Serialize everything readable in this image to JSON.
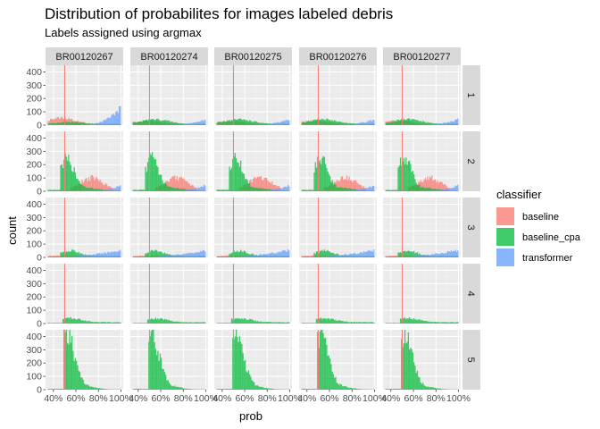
{
  "chart_data": {
    "type": "histogram",
    "title": "Distribution of probabilites for images labeled debris",
    "subtitle": "Labels assigned using argmax",
    "xlabel": "prob",
    "ylabel": "count",
    "x_ticks": [
      "40%",
      "60%",
      "80%",
      "100%"
    ],
    "x_tick_values": [
      0.4,
      0.6,
      0.8,
      1.0
    ],
    "xlim": [
      0.33,
      1.02
    ],
    "y_ticks": [
      "0",
      "100",
      "200",
      "300",
      "400"
    ],
    "y_tick_values": [
      0,
      100,
      200,
      300,
      400
    ],
    "ylim": [
      0,
      450
    ],
    "reference_line_x": 0.5,
    "reference_line_color": "#F8766D",
    "columns": [
      "BR00120267",
      "BR00120274",
      "BR00120275",
      "BR00120276",
      "BR00120277"
    ],
    "rows": [
      "1",
      "2",
      "3",
      "4",
      "5"
    ],
    "legend": {
      "title": "classifier",
      "position": "right",
      "entries": [
        {
          "name": "baseline",
          "color": "#F8766D"
        },
        {
          "name": "baseline_cpa",
          "color": "#00BA38"
        },
        {
          "name": "transformer",
          "color": "#619CFF"
        }
      ]
    },
    "grid": true,
    "bin_edges_start": 0.35,
    "bin_width": 0.01,
    "bins": 65,
    "series": [
      {
        "row": "1",
        "classifier": "baseline",
        "approx_shape": "flat low, peak ~50 near 0.40-0.50, falling to ~10 by 0.80"
      },
      {
        "row": "1",
        "classifier": "baseline_cpa",
        "approx_shape": "~30-45 near 0.50-0.65, ~15 afterwards"
      },
      {
        "row": "1",
        "classifier": "transformer",
        "approx_shape": "low ~5, rising to ~130 at 1.00 (col 1), ~40 elsewhere"
      },
      {
        "row": "2",
        "classifier": "baseline",
        "approx_shape": "broad hump ~100 over 0.60-0.90"
      },
      {
        "row": "2",
        "classifier": "baseline_cpa",
        "approx_shape": "peak ~230-250 near 0.52, decaying to ~20 by 0.80"
      },
      {
        "row": "2",
        "classifier": "transformer",
        "approx_shape": "low ~10, rising to ~40 at 1.00"
      },
      {
        "row": "3",
        "classifier": "baseline",
        "approx_shape": "low ~10-15"
      },
      {
        "row": "3",
        "classifier": "baseline_cpa",
        "approx_shape": "peak ~30-45 near 0.50-0.60"
      },
      {
        "row": "3",
        "classifier": "transformer",
        "approx_shape": "rising from ~5 to ~50 at 1.00"
      },
      {
        "row": "4",
        "classifier": "baseline",
        "approx_shape": "very low ~5"
      },
      {
        "row": "4",
        "classifier": "baseline_cpa",
        "approx_shape": "~20-40 near 0.50-0.70, ~10 after"
      },
      {
        "row": "4",
        "classifier": "transformer",
        "approx_shape": "~5 flat"
      },
      {
        "row": "5",
        "classifier": "baseline",
        "approx_shape": "very low ~3"
      },
      {
        "row": "5",
        "classifier": "baseline_cpa",
        "approx_shape": "peak ~400 near 0.52, decaying to ~10 by 0.80"
      },
      {
        "row": "5",
        "classifier": "transformer",
        "approx_shape": "very low ~3"
      }
    ]
  }
}
